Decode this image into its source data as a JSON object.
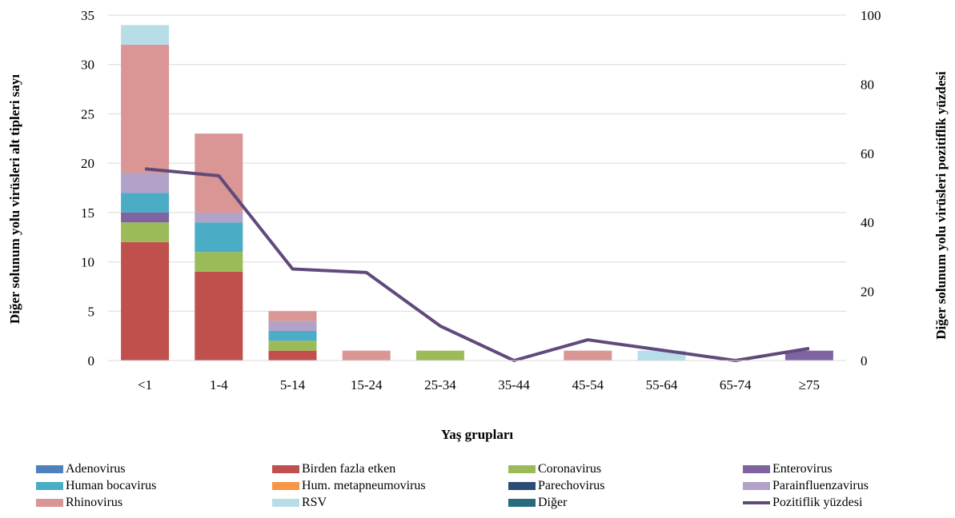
{
  "chart_data": {
    "type": "bar",
    "stacked": true,
    "categories": [
      "<1",
      "1-4",
      "5-14",
      "15-24",
      "25-34",
      "35-44",
      "45-54",
      "55-64",
      "65-74",
      "≥75"
    ],
    "xlabel": "Yaş grupları",
    "ylabel": "Diğer solunum yolu virüsleri alt tipleri sayı",
    "y2label": "Diğer solunum yolu virüsleri pozitiflik  yüzdesi",
    "ylim": [
      0,
      35
    ],
    "yticks": [
      "0",
      "5",
      "10",
      "15",
      "20",
      "25",
      "30",
      "35"
    ],
    "y2lim": [
      0,
      100
    ],
    "y2ticks": [
      "0",
      "20",
      "40",
      "60",
      "80",
      "100"
    ],
    "grid": true,
    "legend_position": "bottom",
    "series": [
      {
        "name": "Adenovirus",
        "color": "#4F81BD",
        "values": [
          0,
          0,
          0,
          0,
          0,
          0,
          0,
          0,
          0,
          0
        ]
      },
      {
        "name": "Birden fazla etken",
        "color": "#C0504D",
        "values": [
          12,
          9,
          1,
          0,
          0,
          0,
          0,
          0,
          0,
          0
        ]
      },
      {
        "name": "Coronavirus",
        "color": "#9BBB59",
        "values": [
          2,
          2,
          1,
          0,
          1,
          0,
          0,
          0,
          0,
          0
        ]
      },
      {
        "name": "Enterovirus",
        "color": "#8064A2",
        "values": [
          1,
          0,
          0,
          0,
          0,
          0,
          0,
          0,
          0,
          1
        ]
      },
      {
        "name": "Human bocavirus",
        "color": "#4BACC6",
        "values": [
          2,
          3,
          1,
          0,
          0,
          0,
          0,
          0,
          0,
          0
        ]
      },
      {
        "name": "Hum. metapneumovirus",
        "color": "#F79646",
        "values": [
          0,
          0,
          0,
          0,
          0,
          0,
          0,
          0,
          0,
          0
        ]
      },
      {
        "name": "Parechovirus",
        "color": "#2C4D75",
        "values": [
          0,
          0,
          0,
          0,
          0,
          0,
          0,
          0,
          0,
          0
        ]
      },
      {
        "name": "Parainfluenzavirus",
        "color": "#B3A2C7",
        "values": [
          2,
          1,
          1,
          0,
          0,
          0,
          0,
          0,
          0,
          0
        ]
      },
      {
        "name": "Rhinovirus",
        "color": "#D99694",
        "values": [
          13,
          8,
          1,
          1,
          0,
          0,
          1,
          0,
          0,
          0
        ]
      },
      {
        "name": "RSV",
        "color": "#B7DEE8",
        "values": [
          2,
          0,
          0,
          0,
          0,
          0,
          0,
          1,
          0,
          0
        ]
      },
      {
        "name": "Diğer",
        "color": "#276A7C",
        "values": [
          0,
          0,
          0,
          0,
          0,
          0,
          0,
          0,
          0,
          0
        ]
      }
    ],
    "line_series": {
      "name": "Pozitiflik yüzdesi",
      "color": "#604A7B",
      "axis": "right",
      "values": [
        55.5,
        53.5,
        26.5,
        25.5,
        10,
        0,
        6,
        3,
        0,
        3.5
      ]
    },
    "legend_columns": [
      [
        "Adenovirus",
        "Human bocavirus",
        "Rhinovirus"
      ],
      [
        "Birden fazla etken",
        "Hum. metapneumovirus",
        "RSV"
      ],
      [
        "Coronavirus",
        "Parechovirus",
        "Diğer"
      ],
      [
        "Enterovirus",
        "Parainfluenzavirus",
        "Pozitiflik yüzdesi"
      ]
    ]
  }
}
